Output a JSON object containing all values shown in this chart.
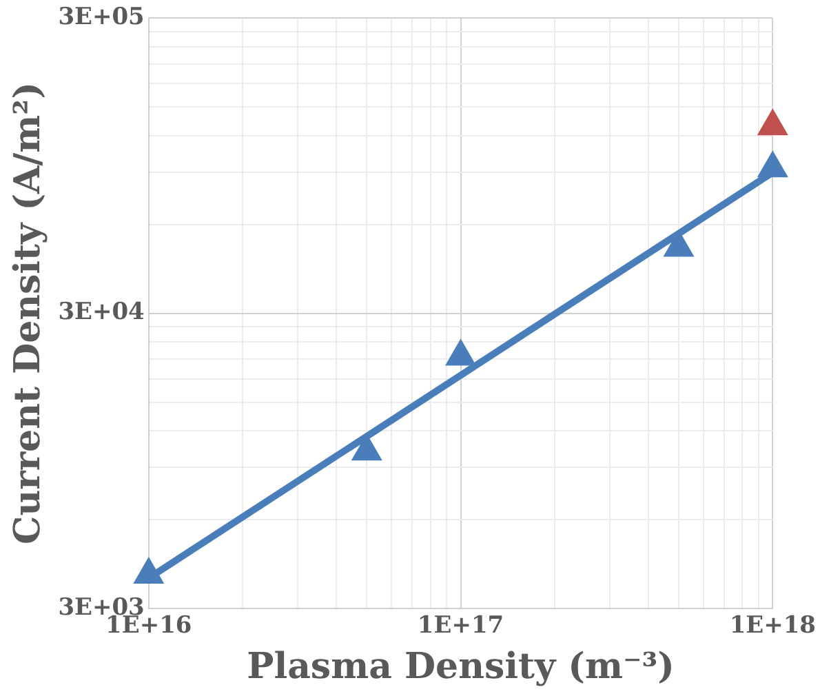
{
  "chart_data": {
    "type": "scatter",
    "xlabel": "Plasma Density (m⁻³)",
    "ylabel": "Current Density (A/m²)",
    "log": "xy",
    "grid": true,
    "legend": false,
    "marker": "triangle",
    "xlim": [
      1e+16,
      1e+18
    ],
    "ylim": [
      3000,
      300000
    ],
    "xticks": [
      {
        "value": 1e+16,
        "label": "1E+16"
      },
      {
        "value": 2e+16,
        "label": null
      },
      {
        "value": 3e+16,
        "label": null
      },
      {
        "value": 4e+16,
        "label": null
      },
      {
        "value": 5e+16,
        "label": null
      },
      {
        "value": 6e+16,
        "label": null
      },
      {
        "value": 7e+16,
        "label": null
      },
      {
        "value": 8e+16,
        "label": null
      },
      {
        "value": 9e+16,
        "label": null
      },
      {
        "value": 1e+17,
        "label": "1E+17"
      },
      {
        "value": 2e+17,
        "label": null
      },
      {
        "value": 3e+17,
        "label": null
      },
      {
        "value": 4e+17,
        "label": null
      },
      {
        "value": 5e+17,
        "label": null
      },
      {
        "value": 6e+17,
        "label": null
      },
      {
        "value": 7e+17,
        "label": null
      },
      {
        "value": 8e+17,
        "label": null
      },
      {
        "value": 9e+17,
        "label": null
      },
      {
        "value": 1e+18,
        "label": "1E+18"
      }
    ],
    "yticks": [
      {
        "value": 3000,
        "label": "3E+03"
      },
      {
        "value": 6000,
        "label": null
      },
      {
        "value": 9000,
        "label": null
      },
      {
        "value": 12000,
        "label": null
      },
      {
        "value": 15000,
        "label": null
      },
      {
        "value": 18000,
        "label": null
      },
      {
        "value": 21000,
        "label": null
      },
      {
        "value": 24000,
        "label": null
      },
      {
        "value": 27000,
        "label": null
      },
      {
        "value": 30000,
        "label": "3E+04"
      },
      {
        "value": 60000,
        "label": null
      },
      {
        "value": 90000,
        "label": null
      },
      {
        "value": 120000,
        "label": null
      },
      {
        "value": 150000,
        "label": null
      },
      {
        "value": 180000,
        "label": null
      },
      {
        "value": 210000,
        "label": null
      },
      {
        "value": 240000,
        "label": null
      },
      {
        "value": 270000,
        "label": null
      },
      {
        "value": 300000,
        "label": "3E+05"
      }
    ],
    "series": [
      {
        "type": "line",
        "marker": "none",
        "color": "#4a7ebb",
        "x": [
          1e+16,
          1e+18
        ],
        "values": [
          3800,
          90000
        ]
      },
      {
        "color": "#4a7ebb",
        "x": [
          1e+16,
          5e+16,
          1e+17,
          5e+17,
          1e+18
        ],
        "values": [
          3900,
          10200,
          21400,
          50000,
          93000
        ]
      },
      {
        "color": "#c0504d",
        "x": [
          1e+18
        ],
        "values": [
          129000
        ]
      }
    ]
  }
}
